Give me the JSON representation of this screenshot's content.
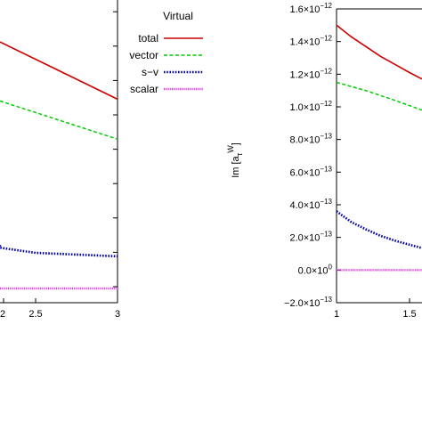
{
  "chart_data": [
    {
      "type": "line",
      "ylabel": "",
      "xlabel": "",
      "xlim": [
        1.7,
        3
      ],
      "x_ticks": [
        "2.5",
        "3"
      ],
      "legend": {
        "title": "Virtual",
        "position": "top-right",
        "entries": [
          "total",
          "vector",
          "s−v",
          "scalar"
        ]
      },
      "series": [
        {
          "name": "total",
          "color": "#cc0000",
          "style": "solid",
          "x": [
            1.7,
            3.0
          ],
          "y": [
            1.42,
            1.09
          ]
        },
        {
          "name": "vector",
          "color": "#00cc00",
          "style": "dashed",
          "x": [
            1.7,
            3.0
          ],
          "y": [
            1.08,
            0.86
          ]
        },
        {
          "name": "s−v",
          "color": "#0000aa",
          "style": "dotted",
          "x": [
            1.7,
            2.0,
            2.5,
            3.0
          ],
          "y": [
            0.25,
            0.235,
            0.205,
            0.185
          ]
        },
        {
          "name": "scalar",
          "color": "#dd44dd",
          "style": "solid",
          "x": [
            1.7,
            3.0
          ],
          "y": [
            0.0,
            0.0
          ]
        }
      ]
    },
    {
      "type": "line",
      "ylabel": "Im [aτW]",
      "ylabel_parts": {
        "main": "Im [a",
        "sub": "τ",
        "sup": "W",
        "close": "]"
      },
      "xlabel": "",
      "xlim": [
        1,
        1.6
      ],
      "ylim": [
        -2e-13,
        1.6e-12
      ],
      "x_ticks": [
        "1",
        "1.5"
      ],
      "y_ticks": [
        {
          "value": 1.6e-12,
          "mantissa": "1.6×10",
          "exp": "−12"
        },
        {
          "value": 1.4e-12,
          "mantissa": "1.4×10",
          "exp": "−12"
        },
        {
          "value": 1.2e-12,
          "mantissa": "1.2×10",
          "exp": "−12"
        },
        {
          "value": 1e-12,
          "mantissa": "1.0×10",
          "exp": "−12"
        },
        {
          "value": 8e-13,
          "mantissa": "8.0×10",
          "exp": "−13"
        },
        {
          "value": 6e-13,
          "mantissa": "6.0×10",
          "exp": "−13"
        },
        {
          "value": 4e-13,
          "mantissa": "4.0×10",
          "exp": "−13"
        },
        {
          "value": 2e-13,
          "mantissa": "2.0×10",
          "exp": "−13"
        },
        {
          "value": 0.0,
          "mantissa": "0.0×10",
          "exp": "0"
        },
        {
          "value": -2e-13,
          "mantissa": "−2.0×10",
          "exp": "−13"
        }
      ],
      "series": [
        {
          "name": "total",
          "color": "#cc0000",
          "style": "solid",
          "x": [
            1.0,
            1.1,
            1.2,
            1.3,
            1.4,
            1.5,
            1.6
          ],
          "y": [
            1.5e-12,
            1.43e-12,
            1.37e-12,
            1.31e-12,
            1.26e-12,
            1.21e-12,
            1.17e-12
          ]
        },
        {
          "name": "vector",
          "color": "#00cc00",
          "style": "dashed",
          "x": [
            1.0,
            1.2,
            1.4,
            1.6
          ],
          "y": [
            1.15e-12,
            1.1e-12,
            1.04e-12,
            9.8e-13
          ]
        },
        {
          "name": "s−v",
          "color": "#0000aa",
          "style": "dotted",
          "x": [
            1.0,
            1.1,
            1.2,
            1.3,
            1.4,
            1.5,
            1.6
          ],
          "y": [
            3.6e-13,
            2.95e-13,
            2.5e-13,
            2.1e-13,
            1.8e-13,
            1.55e-13,
            1.35e-13
          ]
        },
        {
          "name": "scalar",
          "color": "#dd44dd",
          "style": "solid",
          "x": [
            1.0,
            1.6
          ],
          "y": [
            0.0,
            0.0
          ]
        }
      ]
    }
  ]
}
